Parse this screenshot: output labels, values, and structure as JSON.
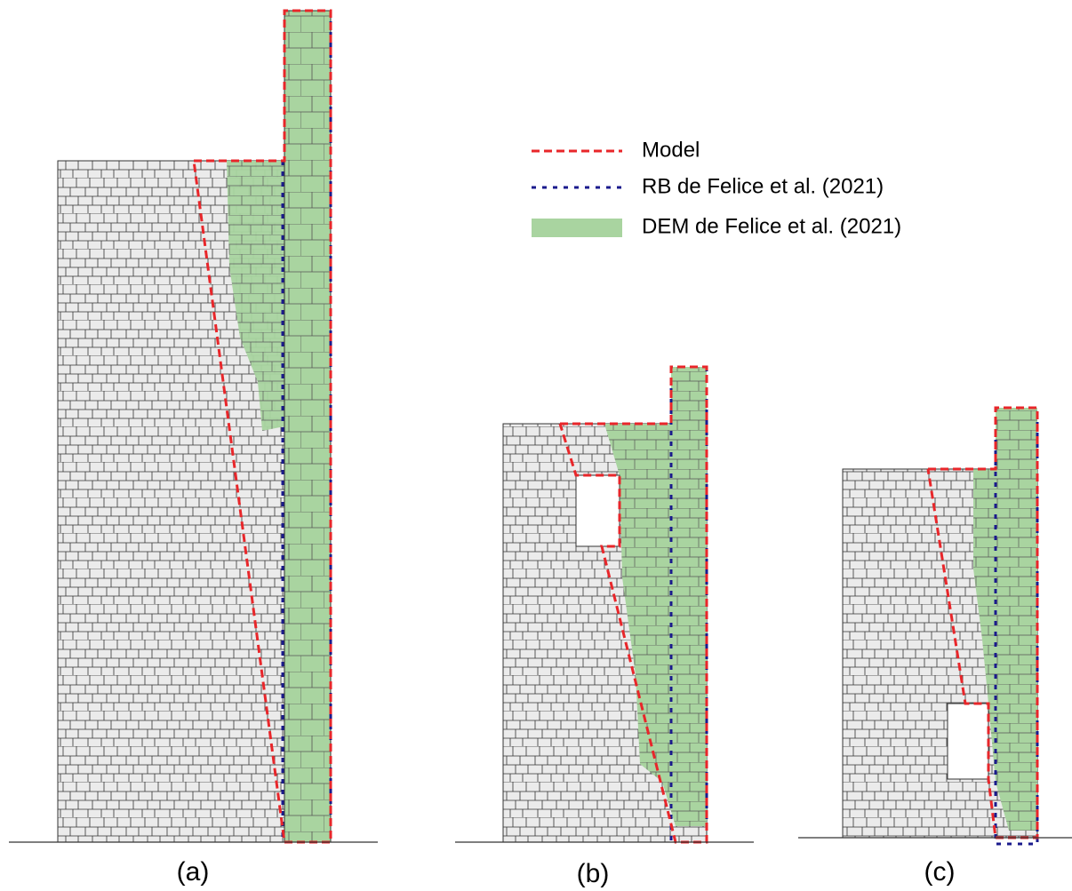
{
  "legend": [
    "Model",
    "RB de Felice et al. (2021)",
    "DEM de Felice et al. (2021)"
  ],
  "panels": [
    "(a)",
    "(b)",
    "(c)"
  ]
}
